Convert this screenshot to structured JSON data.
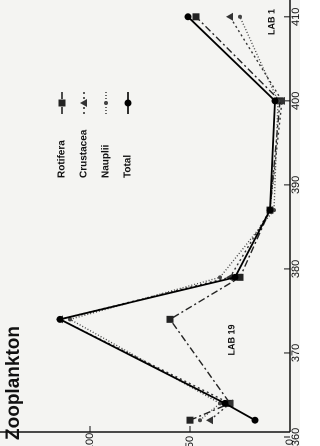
{
  "chart_data": {
    "type": "line",
    "title": "Zooplankton",
    "x": [
      362,
      364,
      374,
      379,
      387,
      400,
      410
    ],
    "xlim": [
      360,
      412
    ],
    "xticks": [
      360,
      370,
      380,
      390,
      400,
      410
    ],
    "ylim": [
      0,
      145
    ],
    "yticks": [
      0,
      50,
      100
    ],
    "annotations": [
      "LAB 19",
      "LAB 1"
    ],
    "series": [
      {
        "name": "Rotifera",
        "color": "#222",
        "dash": "7 3 2 3",
        "marker": "square",
        "values": [
          50,
          30,
          60,
          25,
          10,
          5,
          47
        ]
      },
      {
        "name": "Crustacea",
        "color": "#333",
        "dash": "2 3",
        "marker": "triangle",
        "values": [
          40,
          30,
          115,
          30,
          10,
          4,
          30
        ]
      },
      {
        "name": "Nauplii",
        "color": "#444",
        "dash": "1 2",
        "marker": "circle-small",
        "values": [
          45,
          35,
          110,
          35,
          8,
          6,
          25
        ]
      },
      {
        "name": "Total",
        "color": "#000",
        "dash": "none",
        "marker": "circle",
        "values": [
          17.5,
          32.5,
          115,
          27.5,
          10,
          7.5,
          51
        ]
      }
    ]
  }
}
